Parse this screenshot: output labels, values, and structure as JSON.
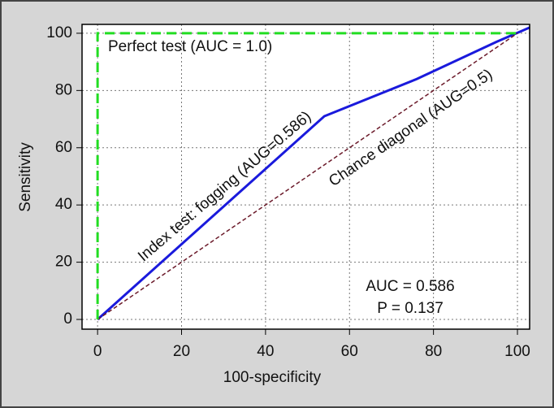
{
  "chart_data": {
    "type": "line",
    "x_label": "100-specificity",
    "y_label": "Sensitivity",
    "xlim": [
      -3.7,
      102.9
    ],
    "ylim": [
      -3.4,
      103.1
    ],
    "xticks": [
      0,
      20,
      40,
      60,
      80,
      100
    ],
    "yticks": [
      0,
      20,
      40,
      60,
      80,
      100
    ],
    "grid": true,
    "series": [
      {
        "color": "#1a1adc",
        "dash": "solid",
        "x": [
          0,
          54,
          76,
          95,
          102.9
        ],
        "values": [
          0,
          71,
          84,
          97,
          102
        ]
      },
      {
        "color": "#6b1a2a",
        "dash": "dashed",
        "x": [
          0,
          100
        ],
        "values": [
          0,
          100
        ]
      },
      {
        "color": "#22dd22",
        "dash": "dashed",
        "x": [
          0,
          0,
          100
        ],
        "values": [
          0,
          100,
          100
        ]
      }
    ],
    "annotations": [
      "Perfect test (AUC = 1.0)",
      "Index test: fogging (AUG=0.586)",
      "Chance diagonal (AUG=0.5)",
      "AUC = 0.586",
      "P = 0.137"
    ]
  }
}
